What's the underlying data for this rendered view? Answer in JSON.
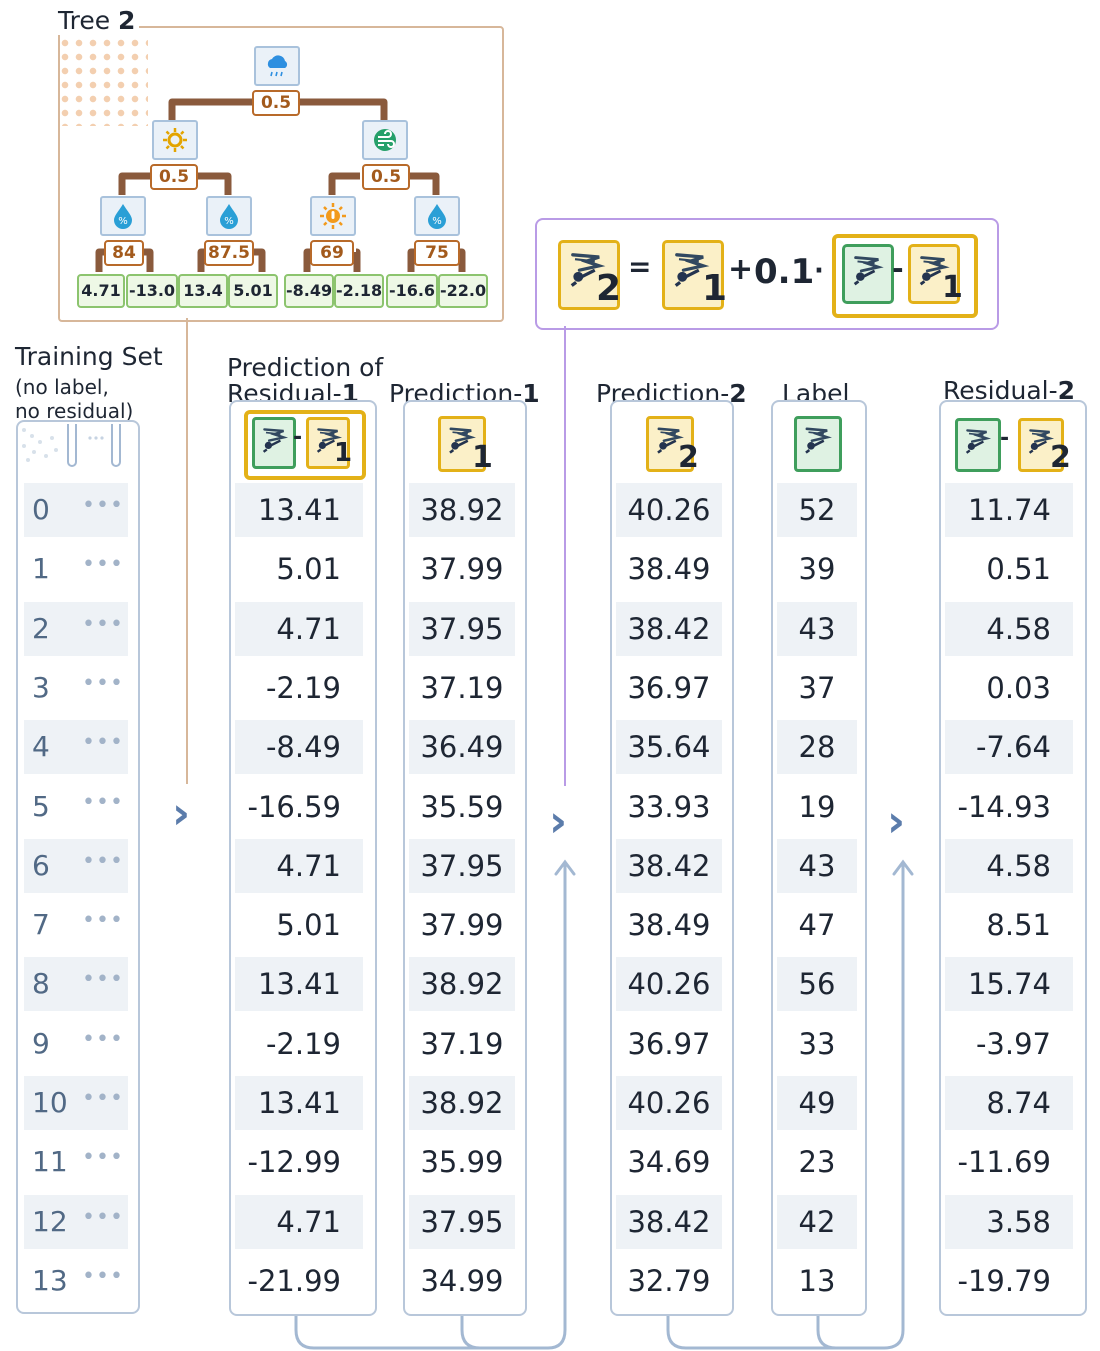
{
  "tree": {
    "title_prefix": "Tree",
    "title_number": "2",
    "root_threshold": "0.5",
    "left_threshold": "0.5",
    "right_threshold": "0.5",
    "icons": [
      "rain-cloud-icon",
      "sun-icon",
      "wind-icon",
      "humidity-icon",
      "humidity-icon",
      "hot-temperature-icon",
      "humidity-icon"
    ],
    "level3_thresholds": [
      "84",
      "87.5",
      "69",
      "75"
    ],
    "leaves": [
      "4.71",
      "-13.0",
      "13.4",
      "5.01",
      "-8.49",
      "-2.18",
      "-16.6",
      "-22.0"
    ]
  },
  "formula": {
    "equals": "=",
    "plus": "+",
    "learning_rate": "0.1",
    "dot": "·",
    "minus": "-",
    "sub2": "2",
    "sub1": "1"
  },
  "training_set": {
    "title": "Training Set",
    "note_line1": "(no label,",
    "note_line2": "no residual)",
    "ellipsis": "•••",
    "rows": [
      "0",
      "1",
      "2",
      "3",
      "4",
      "5",
      "6",
      "7",
      "8",
      "9",
      "10",
      "11",
      "12",
      "13"
    ]
  },
  "columns": {
    "pred_resid": {
      "title_line1": "Prediction of",
      "title_line2": "Residual-",
      "title_num": "1",
      "values": [
        "13.41",
        "5.01",
        "4.71",
        "-2.19",
        "-8.49",
        "-16.59",
        "4.71",
        "5.01",
        "13.41",
        "-2.19",
        "13.41",
        "-12.99",
        "4.71",
        "-21.99"
      ]
    },
    "pred1": {
      "title": "Prediction-",
      "title_num": "1",
      "values": [
        "38.92",
        "37.99",
        "37.95",
        "37.19",
        "36.49",
        "35.59",
        "37.95",
        "37.99",
        "38.92",
        "37.19",
        "38.92",
        "35.99",
        "37.95",
        "34.99"
      ]
    },
    "pred2": {
      "title": "Prediction-",
      "title_num": "2",
      "values": [
        "40.26",
        "38.49",
        "38.42",
        "36.97",
        "35.64",
        "33.93",
        "38.42",
        "38.49",
        "40.26",
        "36.97",
        "40.26",
        "34.69",
        "38.42",
        "32.79"
      ]
    },
    "label": {
      "title": "Label",
      "values": [
        "52",
        "39",
        "43",
        "37",
        "28",
        "19",
        "43",
        "47",
        "56",
        "33",
        "49",
        "23",
        "42",
        "13"
      ]
    },
    "resid2": {
      "title": "Residual-",
      "title_num": "2",
      "values": [
        "11.74",
        "0.51",
        "4.58",
        "0.03",
        "-7.64",
        "-14.93",
        "4.58",
        "8.51",
        "15.74",
        "-3.97",
        "8.74",
        "-11.69",
        "3.58",
        "-19.79"
      ]
    }
  },
  "colors": {
    "tree_border": "#d7b79a",
    "formula_border": "#b99be6",
    "column_border": "#b8c7da",
    "arrow": "#5b7cab",
    "leaf_green": "#8cc46e",
    "prediction_gold": "#e3b118",
    "label_green": "#3f9e5c"
  }
}
